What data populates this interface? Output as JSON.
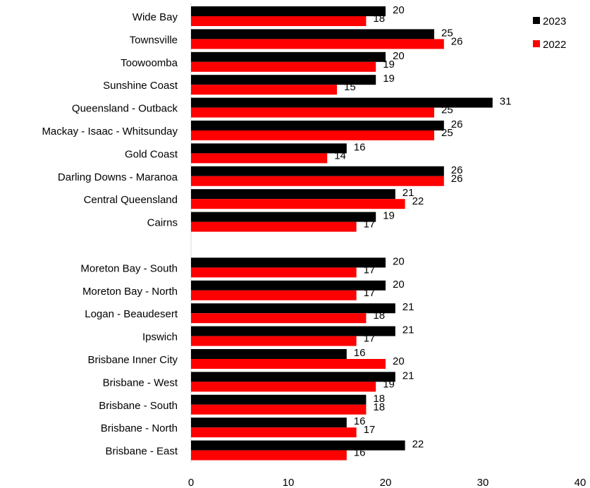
{
  "chart_data": {
    "type": "bar",
    "orientation": "horizontal",
    "categories": [
      "Wide Bay",
      "Townsville",
      "Toowoomba",
      "Sunshine Coast",
      "Queensland - Outback",
      "Mackay - Isaac - Whitsunday",
      "Gold Coast",
      "Darling Downs - Maranoa",
      "Central Queensland",
      "Cairns",
      "",
      "Moreton Bay - South",
      "Moreton Bay - North",
      "Logan - Beaudesert",
      "Ipswich",
      "Brisbane Inner City",
      "Brisbane - West",
      "Brisbane - South",
      "Brisbane - North",
      "Brisbane - East"
    ],
    "series": [
      {
        "name": "2023",
        "color": "#000000",
        "values": [
          20,
          25,
          20,
          19,
          31,
          26,
          16,
          26,
          21,
          19,
          null,
          20,
          20,
          21,
          21,
          16,
          21,
          18,
          16,
          22
        ]
      },
      {
        "name": "2022",
        "color": "#ff0000",
        "values": [
          18,
          26,
          19,
          15,
          25,
          25,
          14,
          26,
          22,
          17,
          null,
          17,
          17,
          18,
          17,
          20,
          19,
          18,
          17,
          16
        ]
      }
    ],
    "xlim": [
      0,
      40
    ],
    "xticks": [
      "0",
      "10",
      "20",
      "30",
      "40"
    ],
    "legend": "top-right",
    "grid": false
  }
}
